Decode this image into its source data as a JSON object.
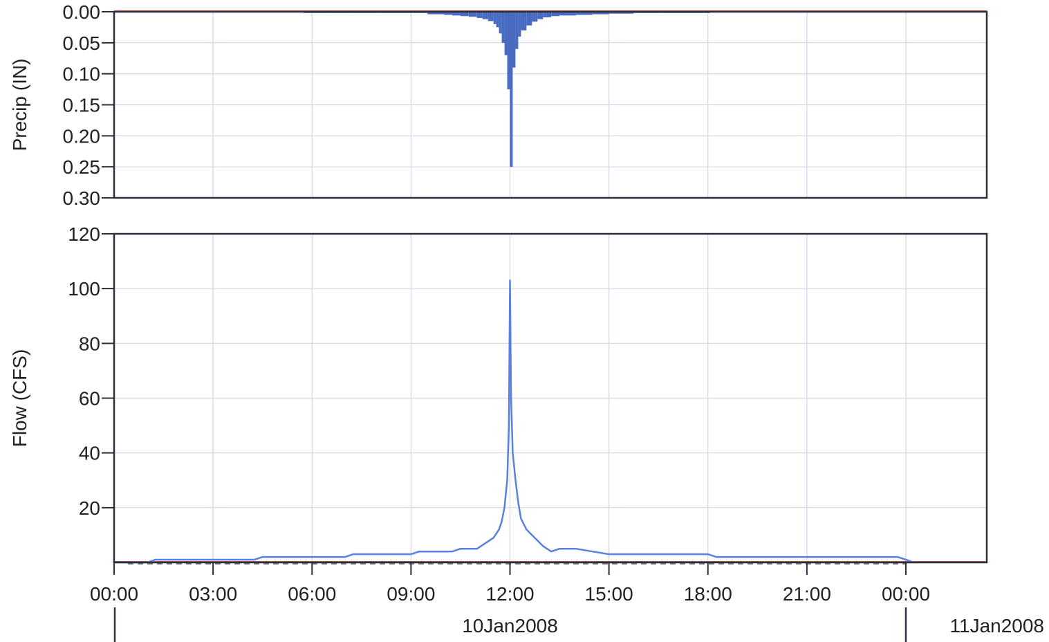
{
  "chart_data": [
    {
      "type": "bar",
      "ylabel": "Precip (IN)",
      "ylim": [
        0.0,
        0.3
      ],
      "y_axis_inverted": true,
      "yticks": [
        "0.00",
        "0.05",
        "0.10",
        "0.15",
        "0.20",
        "0.25",
        "0.30"
      ],
      "grid": true,
      "series": [
        {
          "color": "#4a6cc0",
          "x": [
            "10Jan2008 05:45",
            "10Jan2008 06:30",
            "10Jan2008 07:15",
            "10Jan2008 08:00",
            "10Jan2008 08:45",
            "10Jan2008 09:30",
            "10Jan2008 10:00",
            "10Jan2008 10:15",
            "10Jan2008 10:30",
            "10Jan2008 10:45",
            "10Jan2008 11:00",
            "10Jan2008 11:10",
            "10Jan2008 11:20",
            "10Jan2008 11:30",
            "10Jan2008 11:35",
            "10Jan2008 11:40",
            "10Jan2008 11:45",
            "10Jan2008 11:50",
            "10Jan2008 11:55",
            "10Jan2008 12:00",
            "10Jan2008 12:05",
            "10Jan2008 12:10",
            "10Jan2008 12:15",
            "10Jan2008 12:20",
            "10Jan2008 12:30",
            "10Jan2008 12:40",
            "10Jan2008 12:50",
            "10Jan2008 13:00",
            "10Jan2008 13:15",
            "10Jan2008 13:30",
            "10Jan2008 14:00",
            "10Jan2008 14:30",
            "10Jan2008 15:00",
            "10Jan2008 15:45",
            "10Jan2008 16:30",
            "10Jan2008 17:15",
            "10Jan2008 18:00"
          ],
          "values": [
            0.002,
            0.002,
            0.002,
            0.002,
            0.002,
            0.004,
            0.005,
            0.006,
            0.007,
            0.008,
            0.01,
            0.012,
            0.015,
            0.02,
            0.025,
            0.035,
            0.05,
            0.07,
            0.125,
            0.25,
            0.09,
            0.06,
            0.04,
            0.03,
            0.022,
            0.016,
            0.012,
            0.009,
            0.007,
            0.006,
            0.005,
            0.004,
            0.003,
            0.002,
            0.002,
            0.002,
            0.002
          ]
        }
      ]
    },
    {
      "type": "line",
      "ylabel": "Flow (CFS)",
      "ylim": [
        0,
        120
      ],
      "yticks": [
        "20",
        "40",
        "60",
        "80",
        "100",
        "120"
      ],
      "grid": true,
      "xticks": [
        "00:00",
        "03:00",
        "06:00",
        "09:00",
        "12:00",
        "15:00",
        "18:00",
        "21:00",
        "00:00"
      ],
      "dates": [
        "10Jan2008",
        "11Jan2008"
      ],
      "series": [
        {
          "color": "#5a80e0",
          "x": [
            "10Jan2008 00:00",
            "10Jan2008 01:00",
            "10Jan2008 01:15",
            "10Jan2008 04:15",
            "10Jan2008 04:30",
            "10Jan2008 07:00",
            "10Jan2008 07:15",
            "10Jan2008 09:00",
            "10Jan2008 09:15",
            "10Jan2008 10:15",
            "10Jan2008 10:30",
            "10Jan2008 11:00",
            "10Jan2008 11:15",
            "10Jan2008 11:30",
            "10Jan2008 11:40",
            "10Jan2008 11:45",
            "10Jan2008 11:50",
            "10Jan2008 11:55",
            "10Jan2008 11:58",
            "10Jan2008 12:00",
            "10Jan2008 12:02",
            "10Jan2008 12:05",
            "10Jan2008 12:10",
            "10Jan2008 12:15",
            "10Jan2008 12:20",
            "10Jan2008 12:30",
            "10Jan2008 12:45",
            "10Jan2008 13:00",
            "10Jan2008 13:15",
            "10Jan2008 13:30",
            "10Jan2008 13:45",
            "10Jan2008 14:00",
            "10Jan2008 14:30",
            "10Jan2008 15:00",
            "10Jan2008 15:30",
            "10Jan2008 18:00",
            "10Jan2008 18:15",
            "10Jan2008 21:00",
            "10Jan2008 23:45",
            "11Jan2008 00:00",
            "11Jan2008 00:15"
          ],
          "values": [
            0,
            0,
            1,
            1,
            2,
            2,
            3,
            3,
            4,
            4,
            5,
            5,
            7,
            9,
            12,
            15,
            20,
            30,
            50,
            103,
            60,
            40,
            30,
            22,
            16,
            12,
            9,
            6,
            4,
            5,
            5,
            5,
            4,
            3,
            3,
            3,
            2,
            2,
            2,
            1,
            0
          ]
        }
      ],
      "reference_line": {
        "color": "#e05050",
        "value": 0
      }
    }
  ]
}
